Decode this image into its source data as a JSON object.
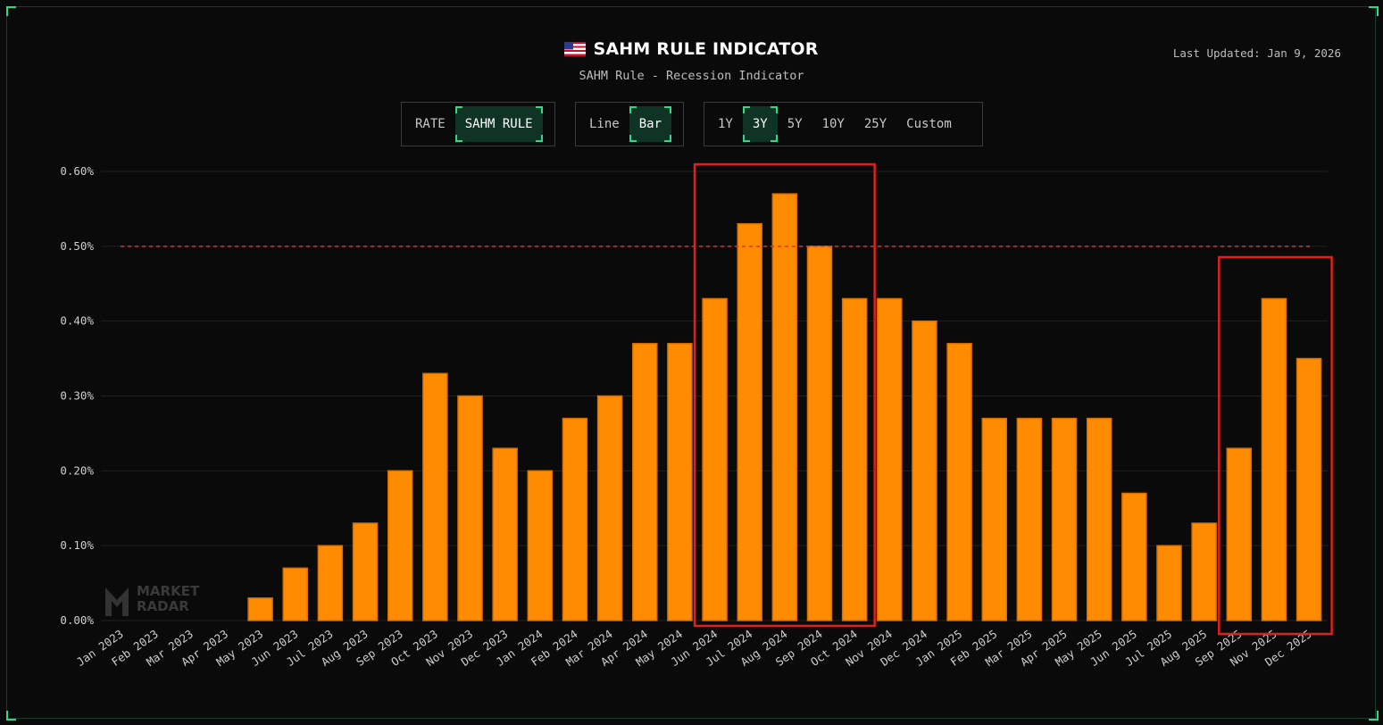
{
  "header": {
    "title": "SAHM RULE INDICATOR",
    "subtitle": "SAHM Rule - Recession Indicator",
    "last_updated": "Last Updated: Jan 9, 2026",
    "flag_icon": "us-flag-icon"
  },
  "controls": {
    "metric": {
      "options": [
        "RATE",
        "SAHM RULE"
      ],
      "selected": "SAHM RULE"
    },
    "chart_type": {
      "options": [
        "Line",
        "Bar"
      ],
      "selected": "Bar"
    },
    "range": {
      "options": [
        "1Y",
        "3Y",
        "5Y",
        "10Y",
        "25Y",
        "Custom"
      ],
      "selected": "3Y"
    }
  },
  "watermark": {
    "line1": "MARKET",
    "line2": "RADAR"
  },
  "colors": {
    "bar_fill": "#ff8c00",
    "bar_stroke": "#d96f00",
    "threshold_line": "#e03030",
    "highlight_box": "#e02020",
    "accent": "#2fd98a"
  },
  "chart_data": {
    "type": "bar",
    "categories": [
      "Jan 2023",
      "Feb 2023",
      "Mar 2023",
      "Apr 2023",
      "May 2023",
      "Jun 2023",
      "Jul 2023",
      "Aug 2023",
      "Sep 2023",
      "Oct 2023",
      "Nov 2023",
      "Dec 2023",
      "Jan 2024",
      "Feb 2024",
      "Mar 2024",
      "Apr 2024",
      "May 2024",
      "Jun 2024",
      "Jul 2024",
      "Aug 2024",
      "Sep 2024",
      "Oct 2024",
      "Nov 2024",
      "Dec 2024",
      "Jan 2025",
      "Feb 2025",
      "Mar 2025",
      "Apr 2025",
      "May 2025",
      "Jun 2025",
      "Jul 2025",
      "Aug 2025",
      "Sep 2025",
      "Nov 2025",
      "Dec 2025"
    ],
    "values": [
      0,
      0,
      0,
      0,
      0.03,
      0.07,
      0.1,
      0.13,
      0.2,
      0.33,
      0.3,
      0.23,
      0.2,
      0.27,
      0.3,
      0.37,
      0.37,
      0.43,
      0.53,
      0.57,
      0.5,
      0.43,
      0.43,
      0.4,
      0.37,
      0.27,
      0.27,
      0.27,
      0.27,
      0.17,
      0.1,
      0.13,
      0.23,
      0.43,
      0.35
    ],
    "y_ticks": [
      "0.00%",
      "0.10%",
      "0.20%",
      "0.30%",
      "0.40%",
      "0.50%",
      "0.60%"
    ],
    "ylim": [
      0,
      0.6
    ],
    "threshold": 0.5,
    "grid": true,
    "highlight_ranges": [
      [
        "Jun 2024",
        "Oct 2024"
      ],
      [
        "Sep 2025",
        "Dec 2025"
      ]
    ]
  }
}
